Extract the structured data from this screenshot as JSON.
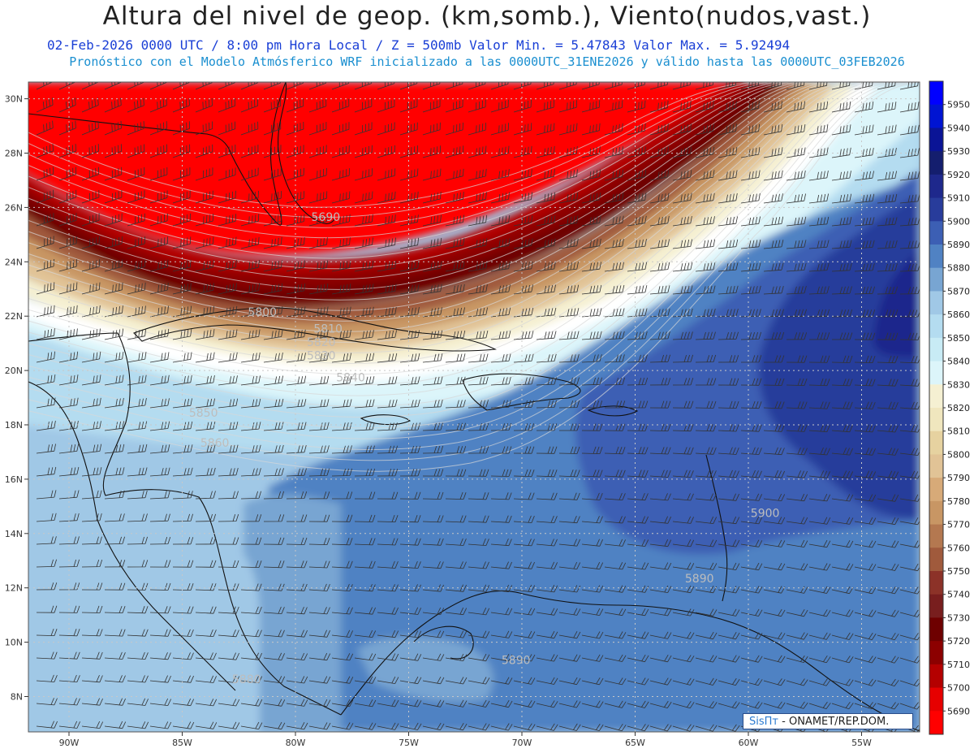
{
  "header": {
    "title": "Altura del nivel de geop. (km,somb.), Viento(nudos,vast.)",
    "subtitle_1": "02-Feb-2026  0000 UTC / 8:00 pm Hora Local / Z = 500mb   Valor Min. = 5.47843  Valor Max. = 5.92494",
    "subtitle_2": "Pronóstico con el Modelo Atmósferico WRF inicializado a las 0000UTC_31ENE2026 y válido hasta las  0000UTC_03FEB2026"
  },
  "map": {
    "lat_labels": [
      "30N",
      "28N",
      "26N",
      "24N",
      "22N",
      "20N",
      "18N",
      "16N",
      "14N",
      "12N",
      "10N",
      "8N"
    ],
    "lon_labels": [
      "90W",
      "85W",
      "80W",
      "75W",
      "70W",
      "65W",
      "60W",
      "55W"
    ],
    "contour_labels": [
      {
        "text": "5690",
        "lon": -79.3,
        "lat": 25.5
      },
      {
        "text": "5800",
        "lon": -82.1,
        "lat": 22.0
      },
      {
        "text": "5810",
        "lon": -79.2,
        "lat": 21.4
      },
      {
        "text": "5820",
        "lon": -79.5,
        "lat": 20.9
      },
      {
        "text": "5830",
        "lon": -79.5,
        "lat": 20.4
      },
      {
        "text": "5840",
        "lon": -78.2,
        "lat": 19.6
      },
      {
        "text": "5850",
        "lon": -84.7,
        "lat": 18.3
      },
      {
        "text": "5860",
        "lon": -84.2,
        "lat": 17.2
      },
      {
        "text": "5900",
        "lon": -59.9,
        "lat": 14.6
      },
      {
        "text": "5890",
        "lon": -62.8,
        "lat": 12.2
      },
      {
        "text": "5890",
        "lon": -70.9,
        "lat": 9.2
      },
      {
        "text": "5880",
        "lon": -82.8,
        "lat": 8.5
      }
    ]
  },
  "colorbar": {
    "levels": [
      "5950",
      "5940",
      "5930",
      "5920",
      "5910",
      "5900",
      "5890",
      "5880",
      "5870",
      "5860",
      "5850",
      "5840",
      "5830",
      "5820",
      "5810",
      "5800",
      "5790",
      "5780",
      "5770",
      "5760",
      "5750",
      "5740",
      "5730",
      "5720",
      "5710",
      "5700",
      "5690"
    ],
    "colors": [
      "#0000ff",
      "#0014d2",
      "#0a1496",
      "#141e6e",
      "#1e288c",
      "#283c9b",
      "#3c5fb4",
      "#5082c3",
      "#78a5d2",
      "#a0c8e6",
      "#b4dcf0",
      "#c8ebf5",
      "#dcf5fa",
      "#f5f0d2",
      "#f0e6be",
      "#e6d2a0",
      "#e1c396",
      "#d7aa78",
      "#c89664",
      "#b47850",
      "#a05a3c",
      "#8c3228",
      "#781e1e",
      "#6e0000",
      "#8c0000",
      "#b40000",
      "#e60000",
      "#ff0000"
    ]
  },
  "credit": {
    "brand": "SisПт",
    "text": "- ONAMET/REP.DOM."
  }
}
